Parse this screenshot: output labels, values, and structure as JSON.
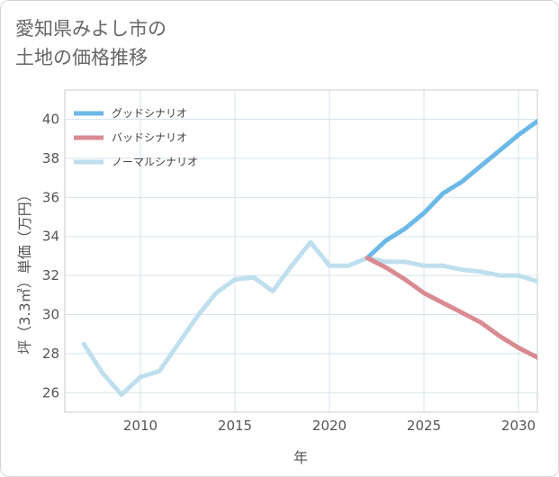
{
  "chart_data": {
    "type": "line",
    "title": "愛知県みよし市の\n土地の価格推移",
    "xlabel": "年",
    "ylabel": "坪（3.3㎡）単価（万円）",
    "xlim": [
      2006,
      2031
    ],
    "ylim": [
      25,
      41.5
    ],
    "xticks": [
      2010,
      2015,
      2020,
      2025,
      2030
    ],
    "yticks": [
      26,
      28,
      30,
      32,
      34,
      36,
      38,
      40
    ],
    "grid": true,
    "legend_position": "top-left",
    "series": [
      {
        "name": "グッドシナリオ",
        "color": "#6cb8e8",
        "x": [
          2022,
          2023,
          2024,
          2025,
          2026,
          2027,
          2028,
          2029,
          2030,
          2031
        ],
        "y": [
          32.9,
          33.8,
          34.4,
          35.2,
          36.2,
          36.8,
          37.6,
          38.4,
          39.2,
          39.9
        ]
      },
      {
        "name": "バッドシナリオ",
        "color": "#d98a92",
        "x": [
          2022,
          2023,
          2024,
          2025,
          2026,
          2027,
          2028,
          2029,
          2030,
          2031
        ],
        "y": [
          32.9,
          32.4,
          31.8,
          31.1,
          30.6,
          30.1,
          29.6,
          28.9,
          28.3,
          27.8
        ]
      },
      {
        "name": "ノーマルシナリオ",
        "color": "#bfdfee",
        "x": [
          2007,
          2008,
          2009,
          2010,
          2011,
          2012,
          2013,
          2014,
          2015,
          2016,
          2017,
          2018,
          2019,
          2020,
          2021,
          2022,
          2023,
          2024,
          2025,
          2026,
          2027,
          2028,
          2029,
          2030,
          2031
        ],
        "y": [
          28.5,
          27.0,
          25.9,
          26.8,
          27.1,
          28.5,
          29.9,
          31.1,
          31.8,
          31.9,
          31.2,
          32.5,
          33.7,
          32.5,
          32.5,
          32.9,
          32.7,
          32.7,
          32.5,
          32.5,
          32.3,
          32.2,
          32.0,
          32.0,
          31.7
        ]
      }
    ]
  }
}
